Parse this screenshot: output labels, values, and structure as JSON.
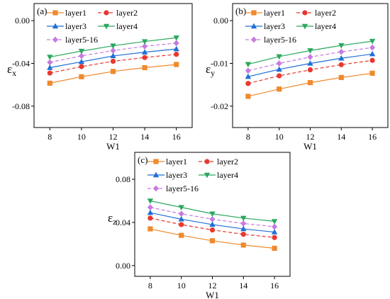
{
  "chart_data": [
    {
      "type": "line",
      "panel_label": "(a)",
      "xlabel": "W1",
      "ylabel_main": "ε",
      "ylabel_sub": "x",
      "x": [
        8,
        10,
        12,
        14,
        16
      ],
      "xticks": [
        "8",
        "10",
        "12",
        "14",
        "16"
      ],
      "yticks": [
        -0.08,
        -0.04,
        0.0
      ],
      "ytick_labels": [
        "-0.08",
        "-0.04",
        "0.00"
      ],
      "xlim": [
        7,
        17
      ],
      "ylim": [
        -0.1,
        0.016
      ],
      "legend": "top-left, two columns",
      "series": [
        {
          "name": "layer1",
          "color": "#f08a2c",
          "marker": "square",
          "dash": "solid",
          "values": [
            -0.0585,
            -0.0525,
            -0.0475,
            -0.044,
            -0.041
          ]
        },
        {
          "name": "layer2",
          "color": "#e8382f",
          "marker": "circle",
          "dash": "dashed",
          "values": [
            -0.049,
            -0.043,
            -0.038,
            -0.0345,
            -0.0315
          ]
        },
        {
          "name": "layer3",
          "color": "#1e6fd8",
          "marker": "triangle-up",
          "dash": "solid",
          "values": [
            -0.044,
            -0.0385,
            -0.033,
            -0.0295,
            -0.0265
          ]
        },
        {
          "name": "layer4",
          "color": "#2aa85e",
          "marker": "triangle-down",
          "dash": "solid",
          "values": [
            -0.034,
            -0.0285,
            -0.0235,
            -0.0195,
            -0.016
          ]
        },
        {
          "name": "layer5-16",
          "color": "#c77ae0",
          "marker": "diamond",
          "dash": "dashed",
          "values": [
            -0.039,
            -0.033,
            -0.028,
            -0.024,
            -0.021
          ]
        }
      ]
    },
    {
      "type": "line",
      "panel_label": "(b)",
      "xlabel": "W1",
      "ylabel_main": "ε",
      "ylabel_sub": "y",
      "x": [
        8,
        10,
        12,
        14,
        16
      ],
      "xticks": [
        "8",
        "10",
        "12",
        "14",
        "16"
      ],
      "yticks": [
        -0.02,
        -0.01,
        0.0
      ],
      "ytick_labels": [
        "-0.02",
        "-0.01",
        "0.00"
      ],
      "xlim": [
        7,
        17
      ],
      "ylim": [
        -0.025,
        0.004
      ],
      "legend": "top-left, two columns",
      "series": [
        {
          "name": "layer1",
          "color": "#f08a2c",
          "marker": "square",
          "dash": "solid",
          "values": [
            -0.0177,
            -0.016,
            -0.0145,
            -0.0133,
            -0.0123
          ]
        },
        {
          "name": "layer2",
          "color": "#e8382f",
          "marker": "circle",
          "dash": "dashed",
          "values": [
            -0.0147,
            -0.0129,
            -0.0115,
            -0.0103,
            -0.0093
          ]
        },
        {
          "name": "layer3",
          "color": "#1e6fd8",
          "marker": "triangle-up",
          "dash": "solid",
          "values": [
            -0.0131,
            -0.0114,
            -0.01,
            -0.0088,
            -0.0078
          ]
        },
        {
          "name": "layer4",
          "color": "#2aa85e",
          "marker": "triangle-down",
          "dash": "solid",
          "values": [
            -0.0102,
            -0.0084,
            -0.007,
            -0.0058,
            -0.0048
          ]
        },
        {
          "name": "layer5-16",
          "color": "#c77ae0",
          "marker": "diamond",
          "dash": "dashed",
          "values": [
            -0.0117,
            -0.01,
            -0.0085,
            -0.0073,
            -0.0063
          ]
        }
      ]
    },
    {
      "type": "line",
      "panel_label": "(c)",
      "xlabel": "W1",
      "ylabel_main": "ε",
      "ylabel_sub": "z",
      "x": [
        8,
        10,
        12,
        14,
        16
      ],
      "xticks": [
        "8",
        "10",
        "12",
        "14",
        "16"
      ],
      "yticks": [
        0.0,
        0.04,
        0.08
      ],
      "ytick_labels": [
        "0.00",
        "0.04",
        "0.08"
      ],
      "xlim": [
        7,
        17
      ],
      "ylim": [
        -0.01,
        0.105
      ],
      "legend": "top-left, two columns",
      "series": [
        {
          "name": "layer1",
          "color": "#f08a2c",
          "marker": "square",
          "dash": "solid",
          "values": [
            0.034,
            0.028,
            0.023,
            0.019,
            0.016
          ]
        },
        {
          "name": "layer2",
          "color": "#e8382f",
          "marker": "circle",
          "dash": "dashed",
          "values": [
            0.044,
            0.038,
            0.033,
            0.029,
            0.026
          ]
        },
        {
          "name": "layer3",
          "color": "#1e6fd8",
          "marker": "triangle-up",
          "dash": "solid",
          "values": [
            0.049,
            0.043,
            0.038,
            0.034,
            0.031
          ]
        },
        {
          "name": "layer4",
          "color": "#2aa85e",
          "marker": "triangle-down",
          "dash": "solid",
          "values": [
            0.06,
            0.054,
            0.048,
            0.044,
            0.041
          ]
        },
        {
          "name": "layer5-16",
          "color": "#c77ae0",
          "marker": "diamond",
          "dash": "dashed",
          "values": [
            0.054,
            0.048,
            0.043,
            0.039,
            0.036
          ]
        }
      ]
    }
  ]
}
